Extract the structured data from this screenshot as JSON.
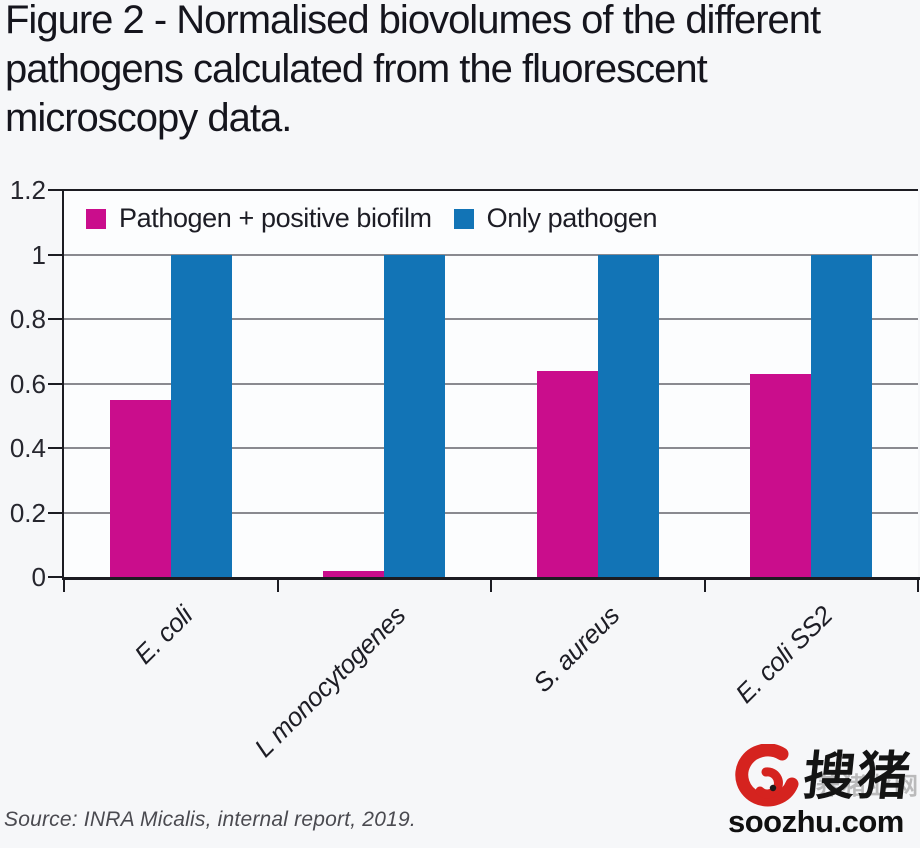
{
  "title": "Figure 2 - Normalised biovolumes of the different pathogens calculated from the fluorescent microscopy data.",
  "source": "Source: INRA Micalis, internal report, 2019.",
  "colors": {
    "series1": "#ca0d8c",
    "series2": "#1274b6",
    "grid": "#8a8a90",
    "axis": "#1c1c22",
    "background": "#f6f7f9",
    "title_text": "#15151d",
    "tick_text": "#26262e",
    "source_text": "#4a4a50",
    "watermark_red": "#d5231f"
  },
  "chart_data": {
    "type": "bar",
    "title": "Normalised biovolumes of the different pathogens",
    "categories": [
      "E. coli",
      "L monocytogenes",
      "S. aureus",
      "E. coli SS2"
    ],
    "series": [
      {
        "name": "Pathogen + positive biofilm",
        "color": "#ca0d8c",
        "values": [
          0.55,
          0.02,
          0.64,
          0.63
        ]
      },
      {
        "name": "Only pathogen",
        "color": "#1274b6",
        "values": [
          1.0,
          1.0,
          1.0,
          1.0
        ]
      }
    ],
    "ylim": [
      0,
      1.2
    ],
    "yticks": [
      {
        "value": 0,
        "label": "0"
      },
      {
        "value": 0.2,
        "label": "0.2"
      },
      {
        "value": 0.4,
        "label": "0.4"
      },
      {
        "value": 0.6,
        "label": "0.6"
      },
      {
        "value": 0.8,
        "label": "0.8"
      },
      {
        "value": 1,
        "label": "1"
      },
      {
        "value": 1.2,
        "label": "1.2"
      }
    ],
    "grid": true,
    "legend_position": "top-left-inside",
    "xlabel": "",
    "ylabel": ""
  },
  "watermark": {
    "cn_text": "搜猪",
    "faint_text": "养猪业网",
    "domain": "soozhu.com"
  }
}
